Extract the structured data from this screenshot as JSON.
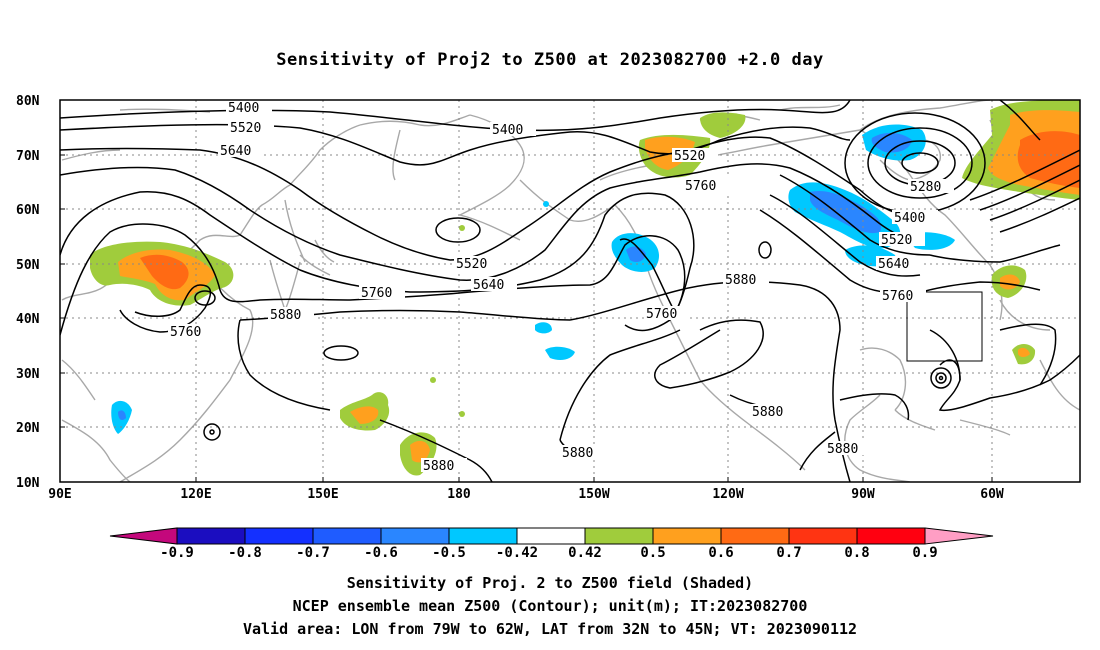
{
  "title": "Sensitivity of Proj2 to Z500 at 2023082700 +2.0 day",
  "lat_labels": [
    "80N",
    "70N",
    "60N",
    "50N",
    "40N",
    "30N",
    "20N",
    "10N"
  ],
  "lon_labels": [
    "90E",
    "120E",
    "150E",
    "180",
    "150W",
    "120W",
    "90W",
    "60W"
  ],
  "contour_labels": [
    "5400",
    "5520",
    "5640",
    "5400",
    "5520",
    "5760",
    "5280",
    "5400",
    "5520",
    "5640",
    "5520",
    "5640",
    "5760",
    "5880",
    "5760",
    "5880",
    "5760",
    "5760",
    "5880",
    "5880",
    "5880",
    "5880"
  ],
  "colorbar": {
    "labels": [
      "-0.9",
      "-0.8",
      "-0.7",
      "-0.6",
      "-0.5",
      "-0.42",
      "0.42",
      "0.5",
      "0.6",
      "0.7",
      "0.8",
      "0.9"
    ],
    "colors": [
      "#c4087c",
      "#1b0dc0",
      "#1430ff",
      "#1f5cff",
      "#2a86ff",
      "#00c8ff",
      "#ffffff",
      "#a0cc3c",
      "#ffa01e",
      "#ff6a14",
      "#ff3412",
      "#ff0010",
      "#ff9ec4"
    ]
  },
  "captions": [
    "Sensitivity of Proj. 2 to Z500 field (Shaded)",
    "NCEP ensemble mean Z500 (Contour); unit(m); IT:2023082700",
    "Valid area: LON from 79W to 62W, LAT from 32N to 45N; VT: 2023090112"
  ]
}
